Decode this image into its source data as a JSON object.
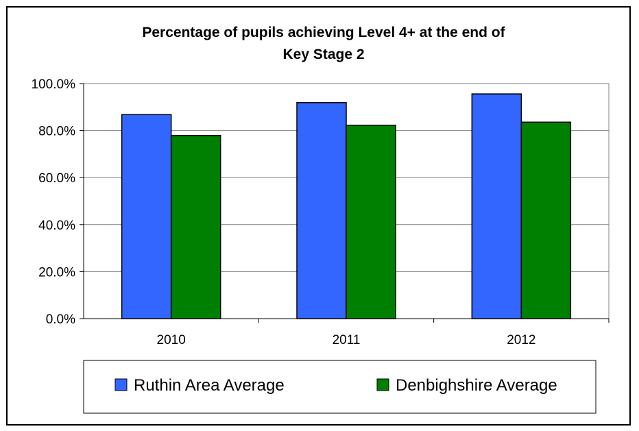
{
  "chart_data": {
    "type": "bar",
    "title_lines": [
      "Percentage of pupils achieving Level 4+ at the end of",
      "Key Stage 2"
    ],
    "categories": [
      "2010",
      "2011",
      "2012"
    ],
    "series": [
      {
        "name": "Ruthin Area Average",
        "values": [
          86.8,
          91.9,
          95.6
        ],
        "color": "#3366ff"
      },
      {
        "name": "Denbighshire Average",
        "values": [
          77.9,
          82.3,
          83.6
        ],
        "color": "#008000"
      }
    ],
    "ylim": [
      0,
      100
    ],
    "yticks": [
      "0.0%",
      "20.0%",
      "40.0%",
      "60.0%",
      "80.0%",
      "100.0%"
    ],
    "grid": true,
    "legend_position": "bottom"
  }
}
